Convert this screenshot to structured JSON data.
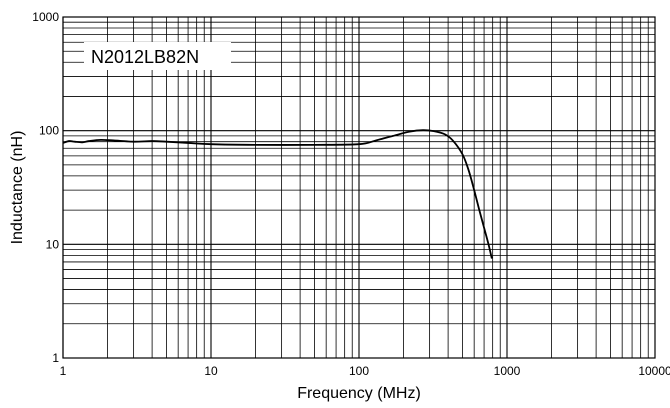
{
  "chart_data": {
    "type": "line",
    "title": "",
    "annotation": "N2012LB82N",
    "xlabel": "Frequency (MHz)",
    "ylabel": "Inductance (nH)",
    "x_scale": "log",
    "y_scale": "log",
    "xlim": [
      1,
      10000
    ],
    "ylim": [
      1,
      1000
    ],
    "x_ticks": [
      {
        "value": 1,
        "label": "1"
      },
      {
        "value": 10,
        "label": "10"
      },
      {
        "value": 100,
        "label": "100"
      },
      {
        "value": 1000,
        "label": "1000"
      },
      {
        "value": 10000,
        "label": "10000"
      }
    ],
    "y_ticks": [
      {
        "value": 1,
        "label": "1"
      },
      {
        "value": 10,
        "label": "10"
      },
      {
        "value": 100,
        "label": "100"
      },
      {
        "value": 1000,
        "label": "1000"
      }
    ],
    "grid": true,
    "line_color": "#000000",
    "series": [
      {
        "x": [
          1.0,
          1.1,
          1.2,
          1.35,
          1.5,
          1.8,
          2.2,
          3,
          4,
          5,
          7,
          10,
          20,
          50,
          100,
          130,
          170,
          220,
          270,
          320,
          380,
          430,
          500,
          550,
          600,
          650,
          700,
          750,
          790
        ],
        "y": [
          78,
          81,
          80,
          79,
          81,
          83,
          82,
          80,
          81,
          80,
          78,
          76,
          75,
          75,
          76,
          82,
          90,
          98,
          101,
          99,
          93,
          82,
          62,
          45,
          30,
          20,
          14,
          10,
          7.5
        ]
      }
    ]
  }
}
